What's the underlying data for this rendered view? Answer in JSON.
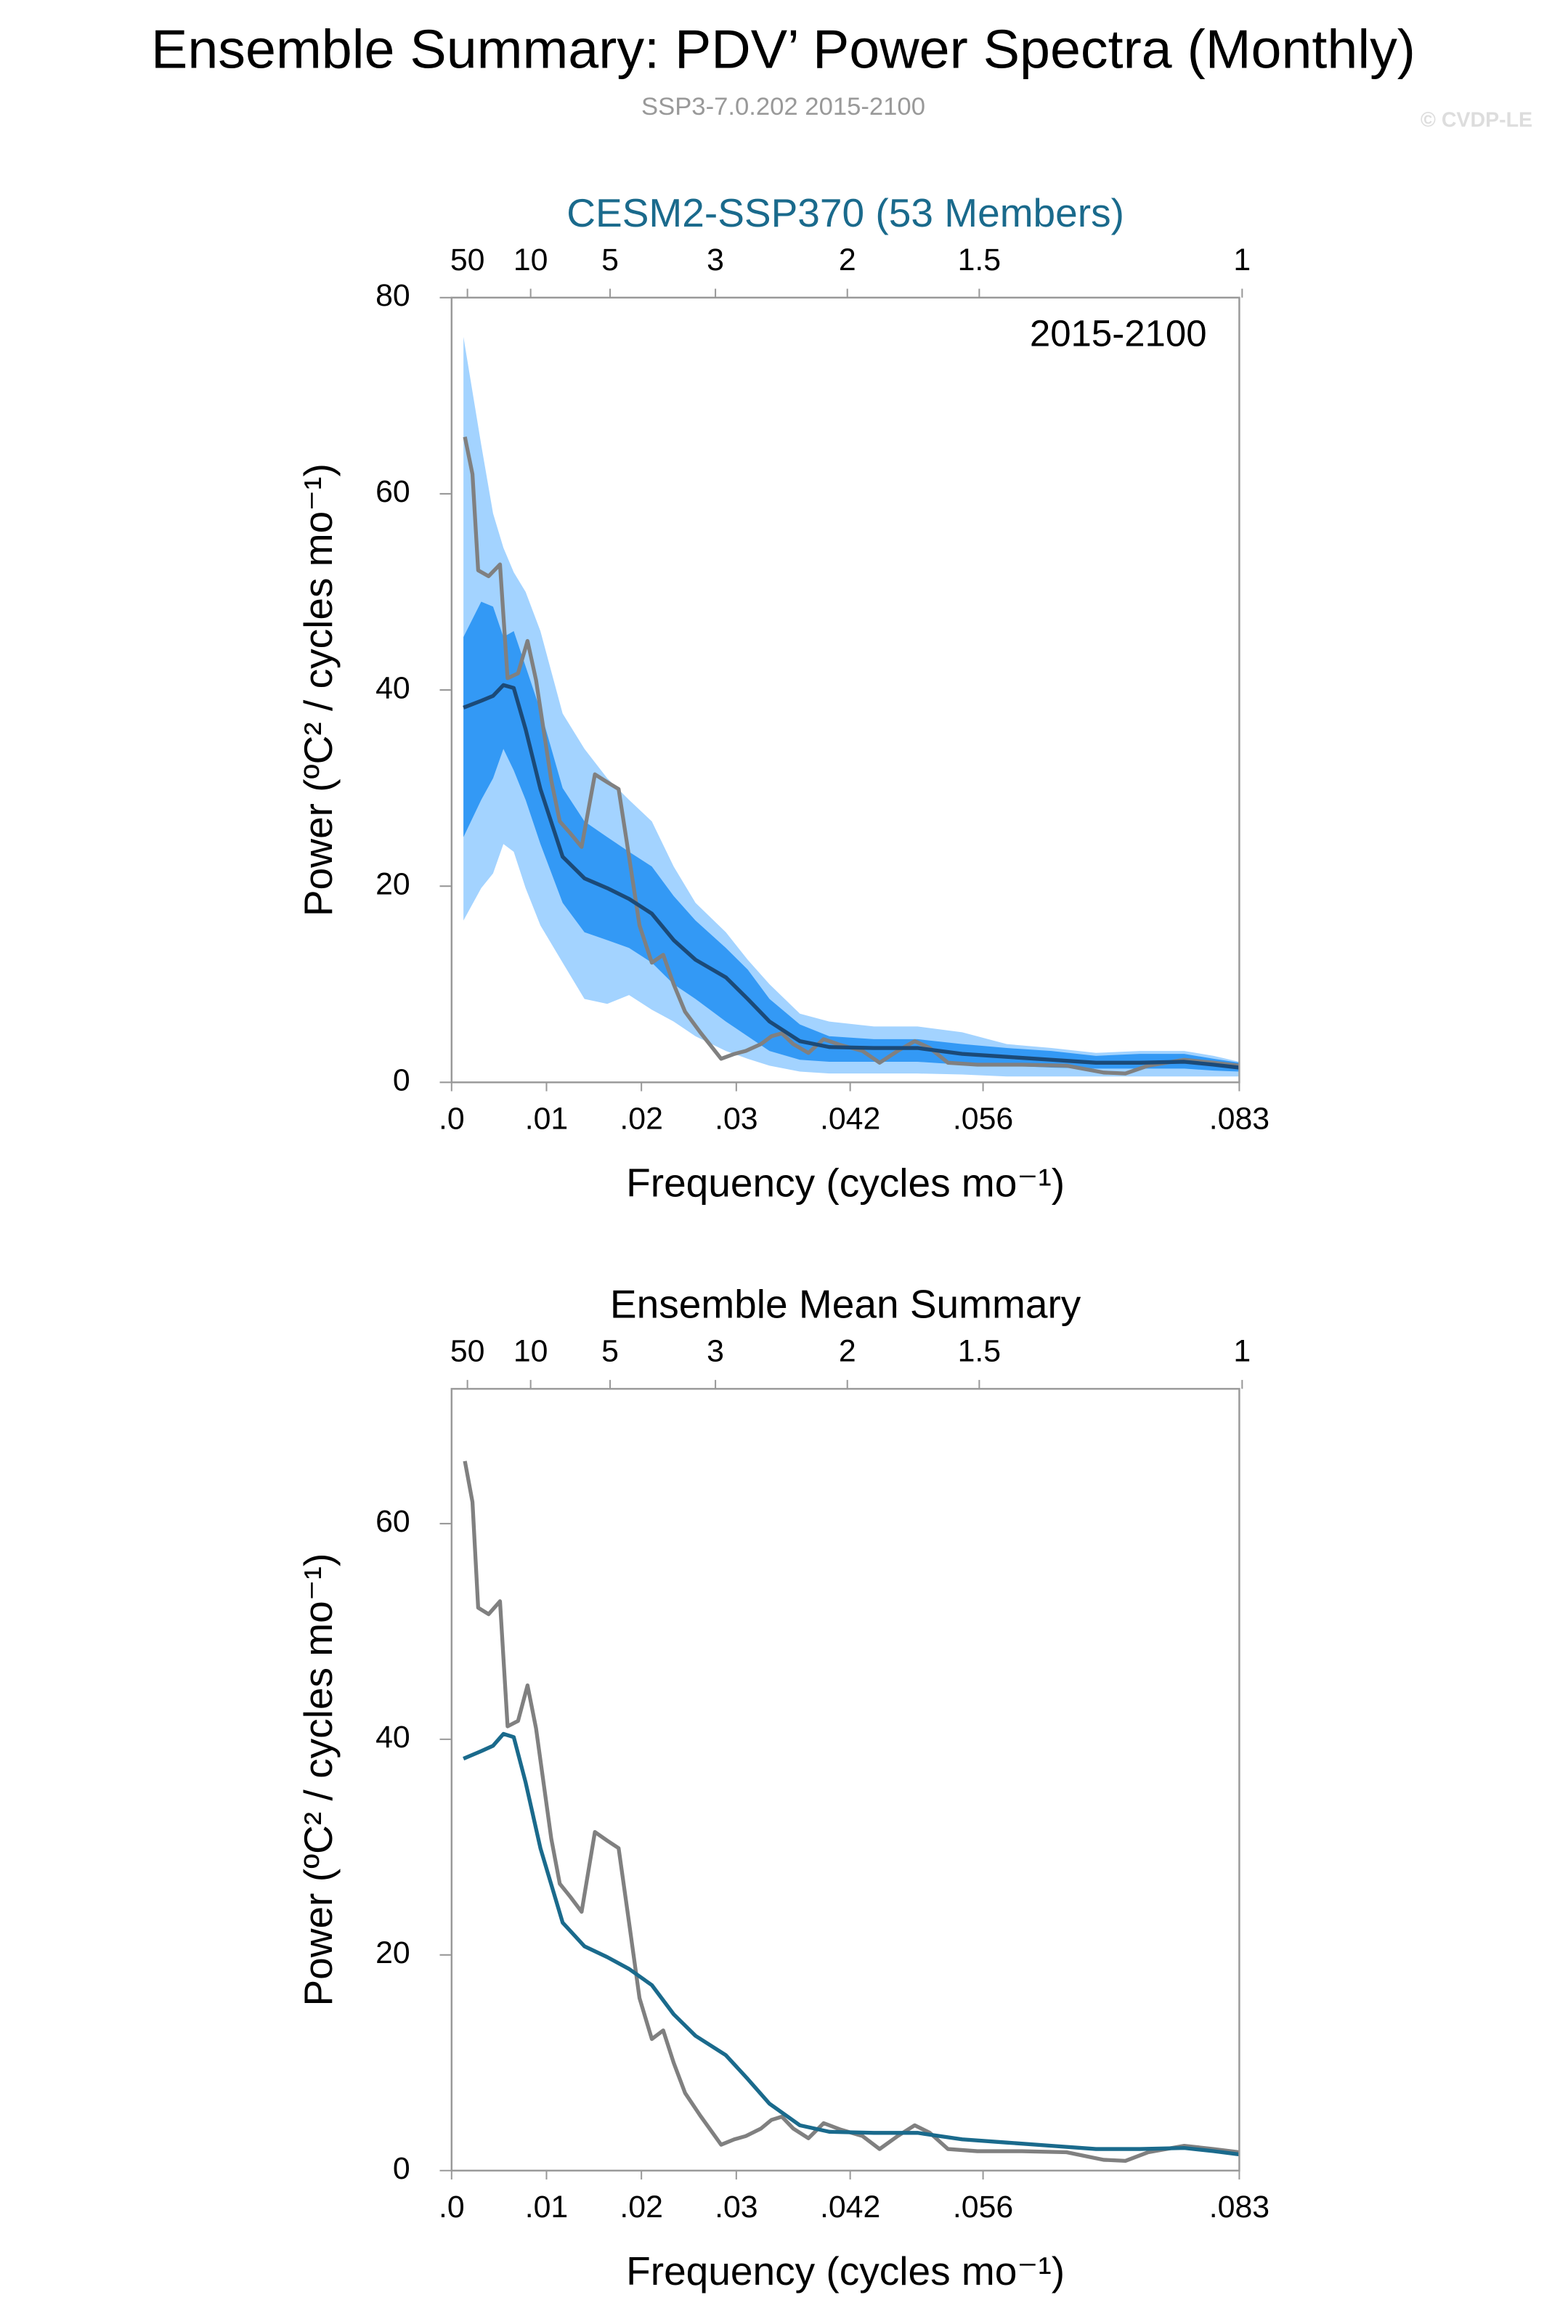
{
  "title": "Ensemble Summary: PDV’ Power Spectra (Monthly)",
  "subtitle": "SSP3-7.0.202 2015-2100",
  "credit": "© CVDP-LE",
  "chart_data": [
    {
      "type": "line",
      "title": "CESM2-SSP370 (53 Members)",
      "annotation": "2015-2100",
      "xlabel": "Frequency (cycles mo⁻¹)",
      "ylabel": "Power (ºC² / cycles mo⁻¹)",
      "xlim": [
        0,
        0.083
      ],
      "ylim": [
        0,
        80
      ],
      "yticks": [
        0,
        20,
        40,
        60,
        80
      ],
      "xticks": [
        {
          "value": 0,
          "label": ".0"
        },
        {
          "value": 0.01,
          "label": ".01"
        },
        {
          "value": 0.02,
          "label": ".02"
        },
        {
          "value": 0.03,
          "label": ".03"
        },
        {
          "value": 0.042,
          "label": ".042"
        },
        {
          "value": 0.056,
          "label": ".056"
        },
        {
          "value": 0.083,
          "label": ".083"
        }
      ],
      "x2ticks": [
        {
          "value": 0.00167,
          "label": "50"
        },
        {
          "value": 0.00833,
          "label": "10"
        },
        {
          "value": 0.0167,
          "label": "5"
        },
        {
          "value": 0.0278,
          "label": "3"
        },
        {
          "value": 0.0417,
          "label": "2"
        },
        {
          "value": 0.0556,
          "label": "1.5"
        },
        {
          "value": 0.0833,
          "label": "1"
        }
      ],
      "bands": [
        {
          "color": "#a3d3ff",
          "x": [
            0.00125,
            0.00312,
            0.00437,
            0.00546,
            0.00655,
            0.0078,
            0.00936,
            0.0117,
            0.014,
            0.0164,
            0.0187,
            0.0211,
            0.0234,
            0.0257,
            0.0289,
            0.0312,
            0.0335,
            0.0367,
            0.0398,
            0.0445,
            0.0491,
            0.0538,
            0.0585,
            0.0632,
            0.0679,
            0.0725,
            0.0772,
            0.0803,
            0.083
          ],
          "upper": [
            76,
            65,
            58,
            54.5,
            52,
            50,
            46,
            37.6,
            34,
            31,
            28.8,
            26.6,
            22,
            18.3,
            15.3,
            12.5,
            10,
            7,
            6.2,
            5.7,
            5.7,
            5.1,
            3.9,
            3.5,
            3,
            3.2,
            3.2,
            2.7,
            2.1
          ],
          "lower": [
            16.5,
            19.8,
            21.3,
            24.3,
            23.5,
            19.8,
            16,
            12.2,
            8.5,
            8,
            8.9,
            7.4,
            6.2,
            4.7,
            3.2,
            2.4,
            1.7,
            1.1,
            0.9,
            0.9,
            0.9,
            0.8,
            0.6,
            0.6,
            0.6,
            0.6,
            0.6,
            0.6,
            0.6
          ]
        },
        {
          "color": "#3399f5",
          "x": [
            0.00125,
            0.00312,
            0.00437,
            0.00546,
            0.00655,
            0.0078,
            0.00936,
            0.0117,
            0.014,
            0.0164,
            0.0187,
            0.0211,
            0.0234,
            0.0257,
            0.0289,
            0.0312,
            0.0335,
            0.0367,
            0.0398,
            0.0445,
            0.0491,
            0.0538,
            0.0585,
            0.0632,
            0.0679,
            0.0725,
            0.0772,
            0.0803,
            0.083
          ],
          "upper": [
            45.4,
            49,
            48.5,
            45.4,
            46,
            42.4,
            37.9,
            30,
            26.6,
            25,
            23.5,
            22,
            19,
            16.5,
            13.7,
            11.5,
            8.5,
            5.9,
            4.7,
            4.4,
            4.4,
            3.9,
            3.5,
            3.2,
            2.7,
            2.9,
            2.9,
            2.4,
            2
          ],
          "lower": [
            25,
            28.8,
            31,
            34,
            31.8,
            28.8,
            24.3,
            18.3,
            15.3,
            14.5,
            13.7,
            12.2,
            10,
            8.5,
            6.2,
            4.7,
            3.2,
            2.3,
            2.1,
            2.1,
            2.1,
            1.8,
            1.7,
            1.5,
            1.4,
            1.4,
            1.4,
            1.2,
            1.1
          ]
        }
      ],
      "series": [
        {
          "color": "#808080",
          "x": [
            0.0014,
            0.0022,
            0.0028,
            0.0039,
            0.0051,
            0.0059,
            0.007,
            0.008,
            0.0089,
            0.0105,
            0.0114,
            0.0125,
            0.0137,
            0.0151,
            0.0164,
            0.0176,
            0.0187,
            0.0198,
            0.0211,
            0.0223,
            0.0234,
            0.0246,
            0.0262,
            0.0284,
            0.0298,
            0.031,
            0.0326,
            0.0337,
            0.0348,
            0.036,
            0.0376,
            0.0392,
            0.041,
            0.0433,
            0.0451,
            0.047,
            0.0488,
            0.0504,
            0.0523,
            0.0554,
            0.0601,
            0.0648,
            0.0687,
            0.071,
            0.0734,
            0.0772,
            0.0803,
            0.083
          ],
          "values": [
            65.8,
            62,
            52.2,
            51.6,
            52.8,
            41.2,
            41.7,
            45,
            41,
            30.8,
            26.6,
            25.4,
            24,
            31.4,
            30.6,
            29.9,
            23,
            16,
            12.2,
            13,
            10,
            7.2,
            5.1,
            2.4,
            2.9,
            3.2,
            3.9,
            4.7,
            5,
            3.9,
            3,
            4.4,
            3.8,
            3.2,
            2,
            3.2,
            4.2,
            3.5,
            2,
            1.8,
            1.8,
            1.7,
            1,
            0.9,
            1.7,
            2.3,
            2,
            1.7
          ]
        },
        {
          "color": "#1b4a78",
          "x": [
            0.00125,
            0.00312,
            0.00437,
            0.00546,
            0.00655,
            0.0078,
            0.00936,
            0.0117,
            0.014,
            0.0164,
            0.0187,
            0.0211,
            0.0234,
            0.0257,
            0.0289,
            0.0312,
            0.0335,
            0.0367,
            0.0398,
            0.0445,
            0.0491,
            0.0538,
            0.0585,
            0.0632,
            0.0679,
            0.0725,
            0.0772,
            0.0803,
            0.083
          ],
          "values": [
            38.2,
            38.9,
            39.4,
            40.5,
            40.2,
            36,
            29.9,
            23,
            20.8,
            19.8,
            18.7,
            17.2,
            14.5,
            12.5,
            10.7,
            8.5,
            6.2,
            4.2,
            3.6,
            3.5,
            3.5,
            2.9,
            2.6,
            2.3,
            2,
            2,
            2.1,
            1.8,
            1.5
          ]
        }
      ]
    },
    {
      "type": "line",
      "title": "Ensemble Mean Summary",
      "xlabel": "Frequency (cycles mo⁻¹)",
      "ylabel": "Power (ºC² / cycles mo⁻¹)",
      "xlim": [
        0,
        0.083
      ],
      "ylim": [
        0,
        72.5
      ],
      "yticks": [
        0,
        20,
        40,
        60
      ],
      "xticks": [
        {
          "value": 0,
          "label": ".0"
        },
        {
          "value": 0.01,
          "label": ".01"
        },
        {
          "value": 0.02,
          "label": ".02"
        },
        {
          "value": 0.03,
          "label": ".03"
        },
        {
          "value": 0.042,
          "label": ".042"
        },
        {
          "value": 0.056,
          "label": ".056"
        },
        {
          "value": 0.083,
          "label": ".083"
        }
      ],
      "x2ticks": [
        {
          "value": 0.00167,
          "label": "50"
        },
        {
          "value": 0.00833,
          "label": "10"
        },
        {
          "value": 0.0167,
          "label": "5"
        },
        {
          "value": 0.0278,
          "label": "3"
        },
        {
          "value": 0.0417,
          "label": "2"
        },
        {
          "value": 0.0556,
          "label": "1.5"
        },
        {
          "value": 0.0833,
          "label": "1"
        }
      ],
      "bands": [],
      "series": [
        {
          "color": "#808080",
          "x": [
            0.0014,
            0.0022,
            0.0028,
            0.0039,
            0.0051,
            0.0059,
            0.007,
            0.008,
            0.0089,
            0.0105,
            0.0114,
            0.0125,
            0.0137,
            0.0151,
            0.0164,
            0.0176,
            0.0187,
            0.0198,
            0.0211,
            0.0223,
            0.0234,
            0.0246,
            0.0262,
            0.0284,
            0.0298,
            0.031,
            0.0326,
            0.0337,
            0.0348,
            0.036,
            0.0376,
            0.0392,
            0.041,
            0.0433,
            0.0451,
            0.047,
            0.0488,
            0.0504,
            0.0523,
            0.0554,
            0.0601,
            0.0648,
            0.0687,
            0.071,
            0.0734,
            0.0772,
            0.0803,
            0.083
          ],
          "values": [
            65.8,
            62,
            52.2,
            51.6,
            52.8,
            41.2,
            41.7,
            45,
            41,
            30.8,
            26.6,
            25.4,
            24,
            31.4,
            30.6,
            29.9,
            23,
            16,
            12.2,
            13,
            10,
            7.2,
            5.1,
            2.4,
            2.9,
            3.2,
            3.9,
            4.7,
            5,
            3.9,
            3,
            4.4,
            3.8,
            3.2,
            2,
            3.2,
            4.2,
            3.5,
            2,
            1.8,
            1.8,
            1.7,
            1,
            0.9,
            1.7,
            2.3,
            2,
            1.7
          ]
        },
        {
          "color": "#1a6a8c",
          "x": [
            0.00125,
            0.00312,
            0.00437,
            0.00546,
            0.00655,
            0.0078,
            0.00936,
            0.0117,
            0.014,
            0.0164,
            0.0187,
            0.0211,
            0.0234,
            0.0257,
            0.0289,
            0.0312,
            0.0335,
            0.0367,
            0.0398,
            0.0445,
            0.0491,
            0.0538,
            0.0585,
            0.0632,
            0.0679,
            0.0725,
            0.0772,
            0.0803,
            0.083
          ],
          "values": [
            38.2,
            38.9,
            39.4,
            40.5,
            40.2,
            36,
            29.9,
            23,
            20.8,
            19.8,
            18.7,
            17.2,
            14.5,
            12.5,
            10.7,
            8.5,
            6.2,
            4.2,
            3.6,
            3.5,
            3.5,
            2.9,
            2.6,
            2.3,
            2,
            2,
            2.1,
            1.8,
            1.5
          ]
        }
      ]
    }
  ]
}
